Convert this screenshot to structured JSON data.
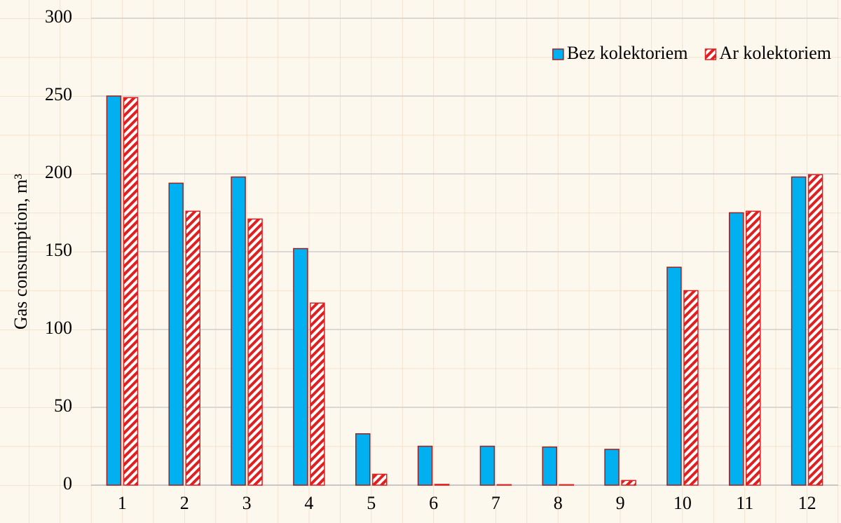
{
  "chart_data": {
    "type": "bar",
    "ylabel": "Gas consumption, m³",
    "categories": [
      "1",
      "2",
      "3",
      "4",
      "5",
      "6",
      "7",
      "8",
      "9",
      "10",
      "11",
      "12"
    ],
    "series": [
      {
        "name": "Bez kolektoriem",
        "color": "#00b0f0",
        "values": [
          250,
          194,
          198,
          152,
          33,
          25,
          25,
          24.5,
          23,
          140,
          175,
          198
        ]
      },
      {
        "name": "Ar kolektoriem",
        "color": "#e02020",
        "hatch": true,
        "values": [
          249,
          176,
          171,
          117,
          7,
          0.5,
          0.3,
          0.3,
          3,
          125,
          176,
          199.5
        ]
      }
    ],
    "ylim": [
      0,
      300
    ],
    "yticks": [
      0,
      50,
      100,
      150,
      200,
      250,
      300
    ],
    "grid": true,
    "legend": "top-right"
  }
}
